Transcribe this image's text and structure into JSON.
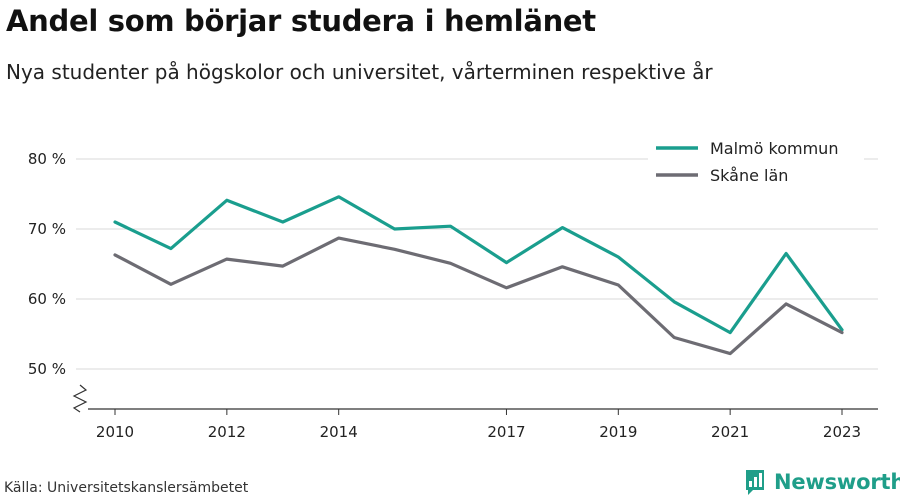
{
  "header": {
    "title": "Andel som börjar studera i hemlänet",
    "subtitle": "Nya studenter på högskolor och universitet, vårterminen respektive år"
  },
  "footer": {
    "source": "Källa: Universitetskanslersämbetet",
    "brand": "Newsworthy",
    "brand_icon": "bar-chart-logo-icon",
    "brand_color": "#1f9e89"
  },
  "chart_data": {
    "type": "line",
    "x": [
      2010,
      2011,
      2012,
      2013,
      2014,
      2015,
      2016,
      2017,
      2018,
      2019,
      2020,
      2021,
      2022,
      2023
    ],
    "x_ticks": [
      2010,
      2012,
      2014,
      2017,
      2019,
      2021,
      2023
    ],
    "x_tick_labels": [
      "2010",
      "2012",
      "2014",
      "2017",
      "2019",
      "2021",
      "2023"
    ],
    "y_ticks": [
      50,
      60,
      70,
      80
    ],
    "y_tick_labels": [
      "50 %",
      "60 %",
      "70 %",
      "80 %"
    ],
    "ylim": [
      44,
      83
    ],
    "axis_break": true,
    "grid": true,
    "legend_position": "top-right",
    "series": [
      {
        "name": "Malmö kommun",
        "color": "#1a9e8e",
        "values": [
          71.0,
          67.2,
          74.1,
          71.0,
          74.6,
          70.0,
          70.4,
          65.2,
          70.2,
          66.0,
          59.6,
          55.2,
          66.5,
          55.6
        ]
      },
      {
        "name": "Skåne län",
        "color": "#6d6c73",
        "values": [
          66.3,
          62.1,
          65.7,
          64.7,
          68.7,
          67.1,
          65.1,
          61.6,
          64.6,
          62.0,
          54.5,
          52.2,
          59.3,
          55.2
        ]
      }
    ]
  }
}
